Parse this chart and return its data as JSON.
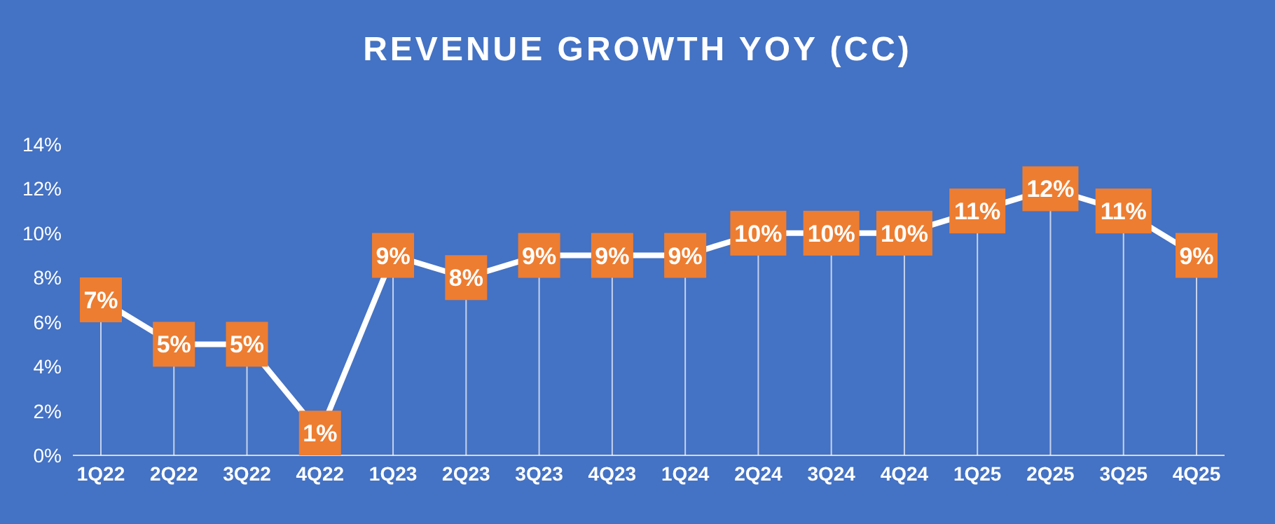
{
  "chart_data": {
    "type": "line",
    "title": "REVENUE GROWTH YOY (CC)",
    "categories": [
      "1Q22",
      "2Q22",
      "3Q22",
      "4Q22",
      "1Q23",
      "2Q23",
      "3Q23",
      "4Q23",
      "1Q24",
      "2Q24",
      "3Q24",
      "4Q24",
      "1Q25",
      "2Q25",
      "3Q25",
      "4Q25"
    ],
    "series": [
      {
        "color": "#ffffff",
        "values": [
          7,
          5,
          5,
          1,
          9,
          8,
          9,
          9,
          9,
          10,
          10,
          10,
          11,
          12,
          11,
          9
        ],
        "value_labels": [
          "7%",
          "5%",
          "5%",
          "1%",
          "9%",
          "8%",
          "9%",
          "9%",
          "9%",
          "10%",
          "10%",
          "10%",
          "11%",
          "12%",
          "11%",
          "9%"
        ]
      }
    ],
    "ylim": [
      0,
      14
    ],
    "yticks": [
      {
        "value": 0,
        "label": "0%"
      },
      {
        "value": 2,
        "label": "2%"
      },
      {
        "value": 4,
        "label": "4%"
      },
      {
        "value": 6,
        "label": "6%"
      },
      {
        "value": 8,
        "label": "8%"
      },
      {
        "value": 10,
        "label": "10%"
      },
      {
        "value": 12,
        "label": "12%"
      },
      {
        "value": 14,
        "label": "14%"
      }
    ],
    "grid": "x",
    "legend": false,
    "marker": "square",
    "line_style": "solid"
  }
}
